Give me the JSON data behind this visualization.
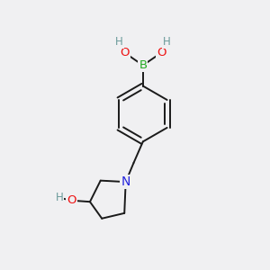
{
  "background_color": "#f0f0f2",
  "atom_colors": {
    "C": "#1a1a1a",
    "H": "#6a9a9a",
    "O": "#ee1111",
    "N": "#2222dd",
    "B": "#22aa22"
  },
  "figsize": [
    3.0,
    3.0
  ],
  "dpi": 100,
  "bond_lw": 1.4,
  "font_size_atom": 9.5
}
